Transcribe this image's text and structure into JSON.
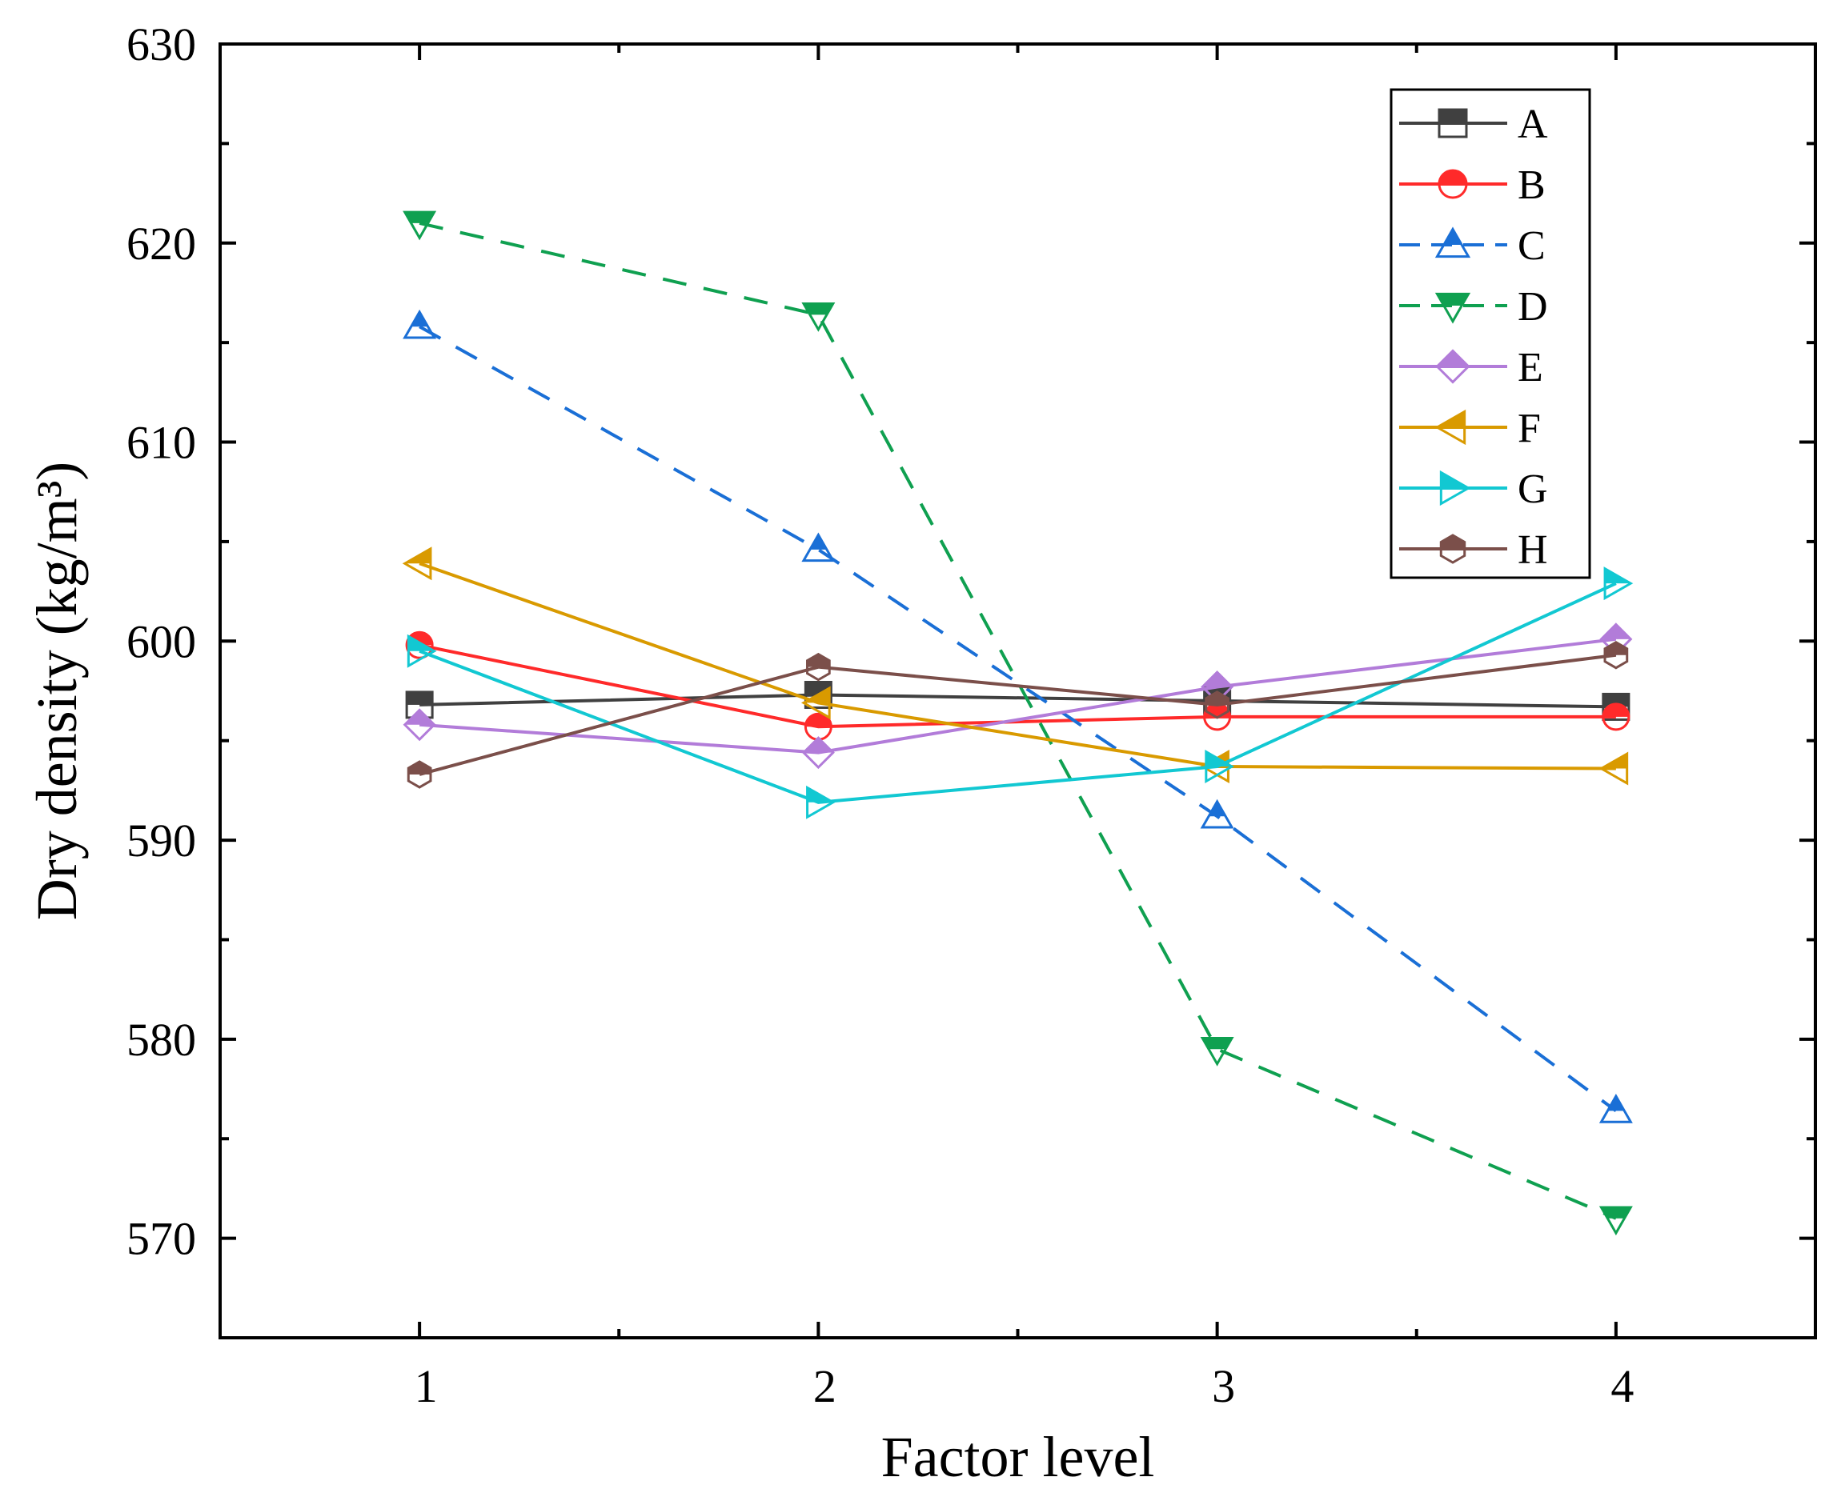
{
  "chart_data": {
    "type": "line",
    "title": "",
    "xlabel": "Factor level",
    "ylabel": "Dry density (kg/m³)",
    "x": [
      1,
      2,
      3,
      4
    ],
    "xlim": [
      0.5,
      4.5
    ],
    "ylim": [
      565,
      630
    ],
    "xticks": [
      1,
      2,
      3,
      4
    ],
    "yticks": [
      570,
      580,
      590,
      600,
      610,
      620,
      630
    ],
    "grid": false,
    "legend_position": "top-right",
    "series": [
      {
        "name": "A",
        "values": [
          596.8,
          597.3,
          597.0,
          596.7
        ],
        "color": "#404040",
        "dash": "solid",
        "marker": "square"
      },
      {
        "name": "B",
        "values": [
          599.8,
          595.7,
          596.2,
          596.2
        ],
        "color": "#ff2a2a",
        "dash": "solid",
        "marker": "circle"
      },
      {
        "name": "C",
        "values": [
          615.8,
          604.6,
          591.2,
          576.4
        ],
        "color": "#1a6fd6",
        "dash": "dashed",
        "marker": "triangle-up"
      },
      {
        "name": "D",
        "values": [
          621.0,
          616.4,
          579.5,
          571.0
        ],
        "color": "#0fa050",
        "dash": "dashed",
        "marker": "triangle-down"
      },
      {
        "name": "E",
        "values": [
          595.8,
          594.4,
          597.7,
          600.1
        ],
        "color": "#b27cd9",
        "dash": "solid",
        "marker": "diamond"
      },
      {
        "name": "F",
        "values": [
          603.9,
          596.9,
          593.7,
          593.6
        ],
        "color": "#d99a00",
        "dash": "solid",
        "marker": "triangle-left"
      },
      {
        "name": "G",
        "values": [
          599.5,
          591.9,
          593.7,
          602.9
        ],
        "color": "#12c8d2",
        "dash": "solid",
        "marker": "triangle-right"
      },
      {
        "name": "H",
        "values": [
          593.3,
          598.7,
          596.8,
          599.3
        ],
        "color": "#7b4f4a",
        "dash": "solid",
        "marker": "hexagon"
      }
    ]
  }
}
